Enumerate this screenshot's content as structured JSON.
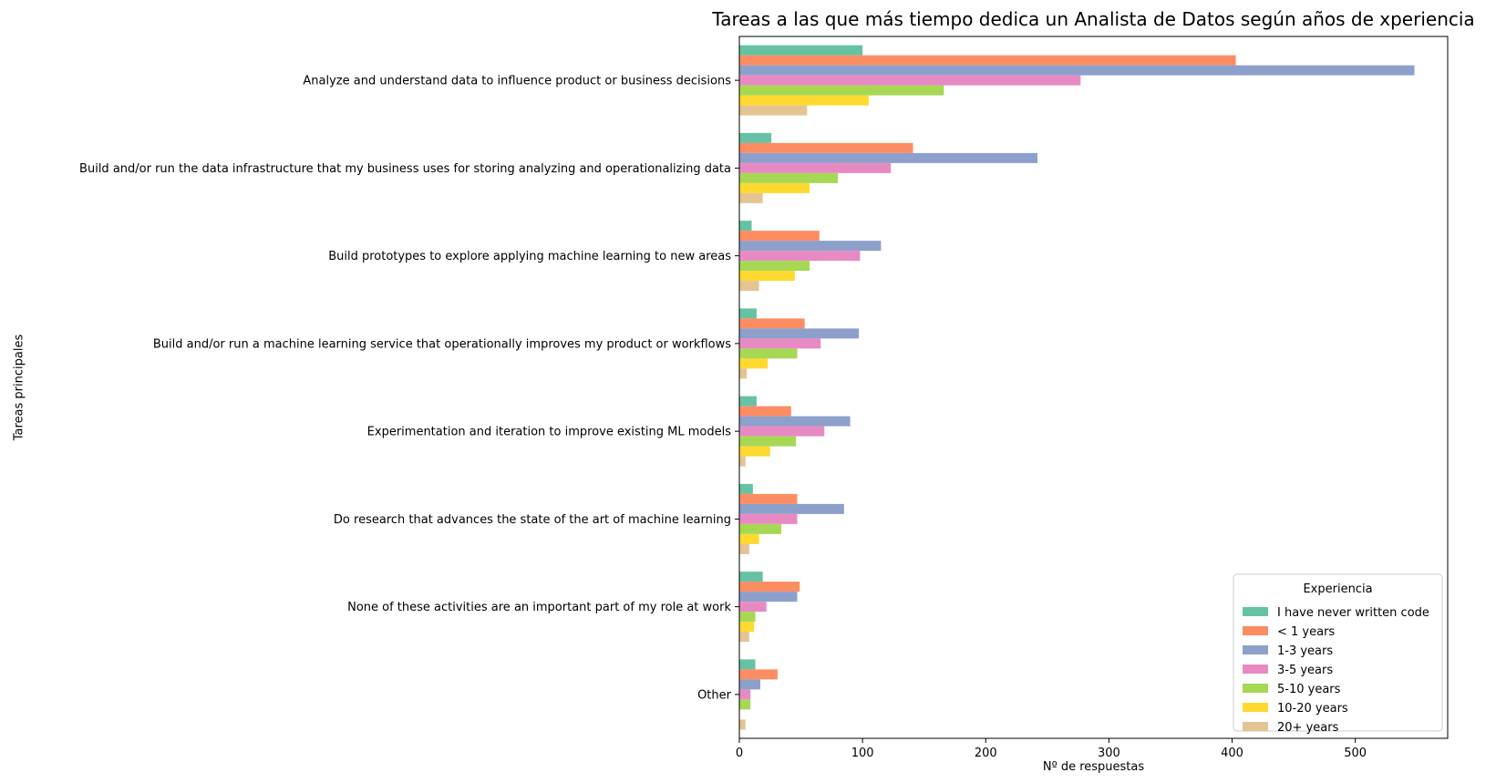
{
  "chart_data": {
    "type": "bar",
    "orientation": "horizontal",
    "title": "Tareas a las que más tiempo dedica un Analista de Datos según años de xperiencia",
    "xlabel": "Nº de respuestas",
    "ylabel": "Tareas principales",
    "xlim": [
      0,
      575
    ],
    "xticks": [
      0,
      100,
      200,
      300,
      400,
      500
    ],
    "grid": false,
    "legend_title": "Experiencia",
    "legend_position": "lower-right",
    "categories": [
      "Analyze and understand data to influence product or business decisions",
      "Build and/or run the data infrastructure that my business uses for storing analyzing and operationalizing data",
      "Build prototypes to explore applying machine learning to new areas",
      "Build and/or run a machine learning service that operationally improves my product or workflows",
      "Experimentation and iteration to improve existing ML models",
      "Do research that advances the state of the art of machine learning",
      "None of these activities are an important part of my role at work",
      "Other"
    ],
    "series": [
      {
        "name": "I have never written code",
        "color": "#66c2a5",
        "values": [
          100,
          26,
          10,
          14,
          14,
          11,
          19,
          13
        ]
      },
      {
        "name": "< 1 years",
        "color": "#fc8d62",
        "values": [
          403,
          141,
          65,
          53,
          42,
          47,
          49,
          31
        ]
      },
      {
        "name": "1-3 years",
        "color": "#8da0cb",
        "values": [
          548,
          242,
          115,
          97,
          90,
          85,
          47,
          17
        ]
      },
      {
        "name": "3-5 years",
        "color": "#e78ac3",
        "values": [
          277,
          123,
          98,
          66,
          69,
          47,
          22,
          9
        ]
      },
      {
        "name": "5-10 years",
        "color": "#a6d854",
        "values": [
          166,
          80,
          57,
          47,
          46,
          34,
          13,
          9
        ]
      },
      {
        "name": "10-20 years",
        "color": "#ffd92f",
        "values": [
          105,
          57,
          45,
          23,
          25,
          16,
          12,
          0
        ]
      },
      {
        "name": "20+ years",
        "color": "#e5c494",
        "values": [
          55,
          19,
          16,
          6,
          5,
          8,
          8,
          5
        ]
      }
    ]
  }
}
